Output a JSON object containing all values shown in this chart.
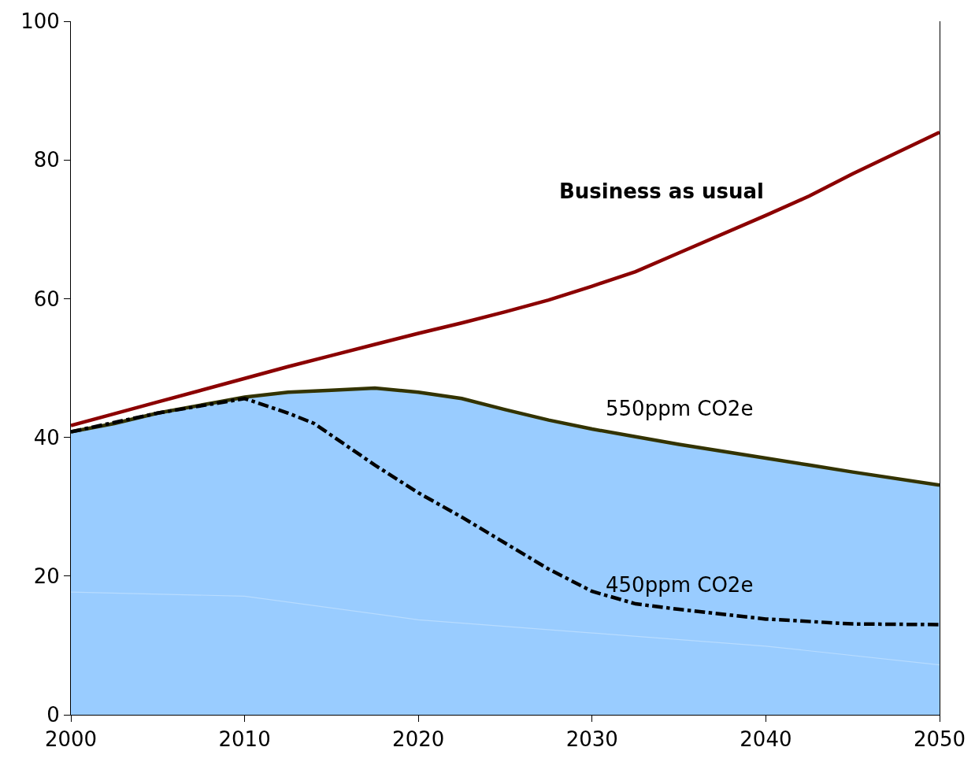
{
  "chart_data": {
    "type": "line",
    "x": [
      2000,
      2002.5,
      2005,
      2010,
      2012.5,
      2015,
      2017.5,
      2020,
      2022.5,
      2025,
      2027.5,
      2030,
      2032.5,
      2035,
      2040,
      2042.5,
      2045,
      2050
    ],
    "series": [
      {
        "type": "area",
        "color": "#99ccff",
        "values": [
          40.8,
          42,
          43.5,
          45.8,
          46.5,
          46.8,
          47.1,
          46.5,
          45.6,
          44,
          42.5,
          41.2,
          40.1,
          39,
          37,
          36,
          35,
          33.1
        ]
      },
      {
        "type": "line",
        "color": "#b8dcff",
        "x": [
          2000,
          2010,
          2020,
          2030,
          2040,
          2050
        ],
        "values": [
          17.7,
          17.1,
          13.7,
          11.8,
          9.9,
          7.2
        ]
      },
      {
        "name": "Business as usual",
        "color": "#8b0000",
        "values": [
          41.7,
          43.4,
          45.1,
          48.5,
          50.2,
          51.8,
          53.4,
          55,
          56.5,
          58.1,
          59.8,
          61.8,
          63.9,
          66.6,
          72,
          74.8,
          78,
          84
        ]
      },
      {
        "name": "550ppm CO2e",
        "color": "#333300",
        "values": [
          40.8,
          42,
          43.5,
          45.8,
          46.5,
          46.8,
          47.1,
          46.5,
          45.6,
          44,
          42.5,
          41.2,
          40.1,
          39,
          37,
          36,
          35,
          33.1
        ]
      },
      {
        "name": "450ppm CO2e",
        "color": "#000000",
        "line_style": "dashdot",
        "x": [
          2000,
          2005,
          2010,
          2012.5,
          2014,
          2017.5,
          2020,
          2022.5,
          2027.5,
          2030,
          2032.5,
          2035,
          2040,
          2045,
          2050
        ],
        "values": [
          40.8,
          43.5,
          45.6,
          43.5,
          42,
          36,
          32,
          28.5,
          21,
          17.8,
          16,
          15.2,
          13.8,
          13.1,
          13.0
        ]
      }
    ],
    "xlim": [
      2000,
      2050
    ],
    "xticks": [
      2000,
      2010,
      2020,
      2030,
      2040,
      2050
    ],
    "ylim": [
      0,
      100
    ],
    "yticks": [
      0,
      20,
      40,
      60,
      80,
      100
    ],
    "legend": false,
    "marker": "none"
  }
}
